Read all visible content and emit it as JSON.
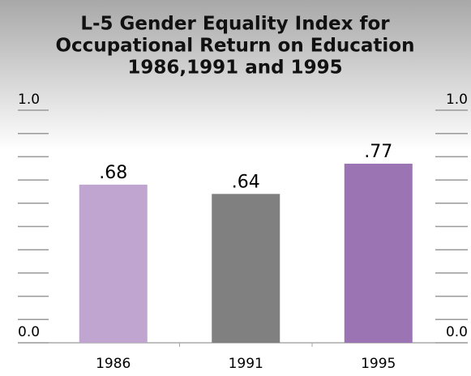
{
  "chart_data": {
    "type": "bar",
    "title": [
      "L-5 Gender Equality Index for",
      "Occupational Return on Education",
      "1986,1991 and 1995"
    ],
    "categories": [
      "1986",
      "1991",
      "1995"
    ],
    "series": [
      {
        "values": [
          0.68,
          0.64,
          0.77
        ],
        "value_labels": [
          ".68",
          ".64",
          ".77"
        ],
        "colors": [
          "#bfa5cf",
          "#808080",
          "#9b74b4"
        ]
      }
    ],
    "ylim": [
      0,
      1
    ],
    "yticks": [
      {
        "value": 0,
        "label": "0.0"
      },
      {
        "value": 1,
        "label": "1.0"
      }
    ],
    "minor_yticks": [
      0.1,
      0.2,
      0.3,
      0.4,
      0.5,
      0.6,
      0.7,
      0.8,
      0.9
    ]
  }
}
